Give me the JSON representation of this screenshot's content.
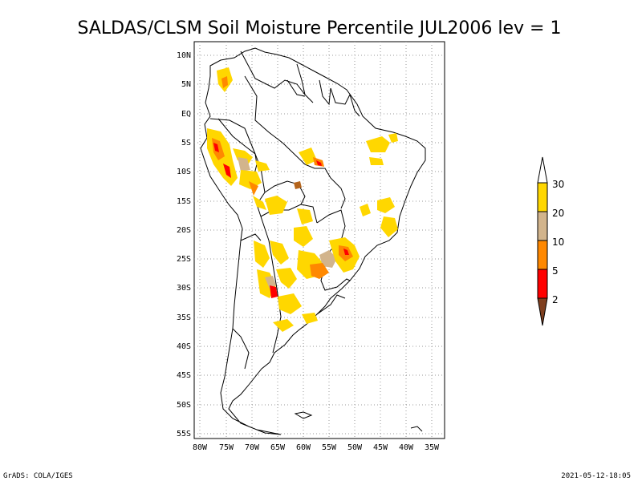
{
  "title": "SALDAS/CLSM Soil Moisture Percentile JUL2006 lev = 1",
  "map": {
    "lat_ticks": [
      "10N",
      "5N",
      "EQ",
      "5S",
      "10S",
      "15S",
      "20S",
      "25S",
      "30S",
      "35S",
      "40S",
      "45S",
      "50S",
      "55S"
    ],
    "lon_ticks": [
      "80W",
      "75W",
      "70W",
      "65W",
      "60W",
      "55W",
      "50W",
      "45W",
      "40W",
      "35W"
    ],
    "lat_range": [
      -56,
      12
    ],
    "lon_range": [
      -81,
      -34
    ],
    "grid": true,
    "gridline_style": "dotted"
  },
  "colorbar": {
    "labels": [
      "2",
      "5",
      "10",
      "20",
      "30"
    ],
    "colors": [
      "#7f3f1f",
      "#ff0000",
      "#ff8800",
      "#d2b48c",
      "#ffd700",
      "#ffffff"
    ]
  },
  "footer": {
    "left": "GrADS: COLA/IGES",
    "right": "2021-05-12-18:05"
  }
}
